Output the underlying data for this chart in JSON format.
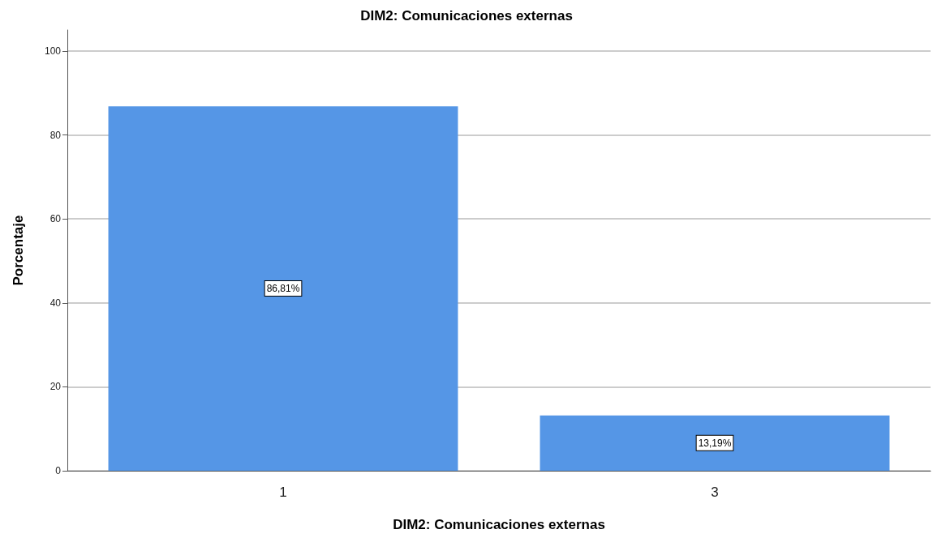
{
  "chart_data": {
    "type": "bar",
    "title": "DIM2: Comunicaciones externas",
    "xlabel": "DIM2: Comunicaciones externas",
    "ylabel": "Porcentaje",
    "categories": [
      "1",
      "3"
    ],
    "values": [
      86.81,
      13.19
    ],
    "value_labels": [
      "86,81%",
      "13,19%"
    ],
    "color": "#5596e6",
    "ylim": [
      0,
      105
    ],
    "yticks": [
      0,
      20,
      40,
      60,
      80,
      100
    ],
    "grid": "y"
  }
}
